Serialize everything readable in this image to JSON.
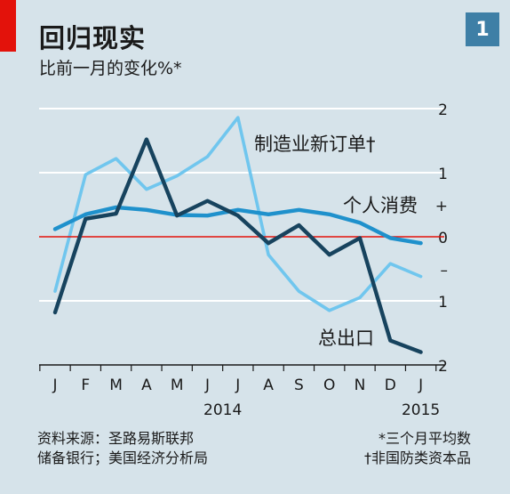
{
  "header": {
    "title": "回归现实",
    "subtitle": "比前一月的变化%*",
    "badge": "1"
  },
  "colors": {
    "background": "#d6e3ea",
    "red": "#e3120b",
    "badge": "#3e7fa6",
    "dark_series": "#17435e",
    "medium_series": "#1f91cc",
    "light_series": "#70c6ee",
    "gridline": "#ffffff",
    "zero_line": "#e3120b"
  },
  "chart_data": {
    "type": "line",
    "x": [
      "J",
      "F",
      "M",
      "A",
      "M",
      "J",
      "J",
      "A",
      "S",
      "O",
      "N",
      "D",
      "J"
    ],
    "x_year_labels": [
      {
        "label": "2014",
        "at_index": 5.5
      },
      {
        "label": "2015",
        "at_index": 12
      }
    ],
    "y_ticks": [
      {
        "value": 2,
        "label": "2"
      },
      {
        "value": 1,
        "label": "1"
      },
      {
        "value": 0.5,
        "label": "+"
      },
      {
        "value": 0,
        "label": "0"
      },
      {
        "value": -0.5,
        "label": "–"
      },
      {
        "value": -1,
        "label": "1"
      },
      {
        "value": -2,
        "label": "2"
      }
    ],
    "ylim": [
      -2,
      2
    ],
    "series": [
      {
        "name": "制造业新订单†",
        "role": "light_series",
        "values": [
          -0.85,
          0.97,
          1.22,
          0.74,
          0.95,
          1.25,
          1.86,
          -0.28,
          -0.85,
          -1.15,
          -0.95,
          -0.42,
          -0.62
        ]
      },
      {
        "name": "个人消费",
        "role": "medium_series",
        "values": [
          0.12,
          0.35,
          0.46,
          0.42,
          0.34,
          0.33,
          0.42,
          0.35,
          0.42,
          0.35,
          0.22,
          -0.02,
          -0.1
        ]
      },
      {
        "name": "总出口",
        "role": "dark_series",
        "values": [
          -1.18,
          0.28,
          0.36,
          1.52,
          0.33,
          0.56,
          0.33,
          -0.1,
          0.18,
          -0.28,
          -0.02,
          -1.62,
          -1.8
        ]
      }
    ]
  },
  "source": {
    "line1": "资料来源：圣路易斯联邦",
    "line2": "储备银行；美国经济分析局"
  },
  "notes": {
    "line1": "*三个月平均数",
    "line2": "†非国防类资本品"
  }
}
